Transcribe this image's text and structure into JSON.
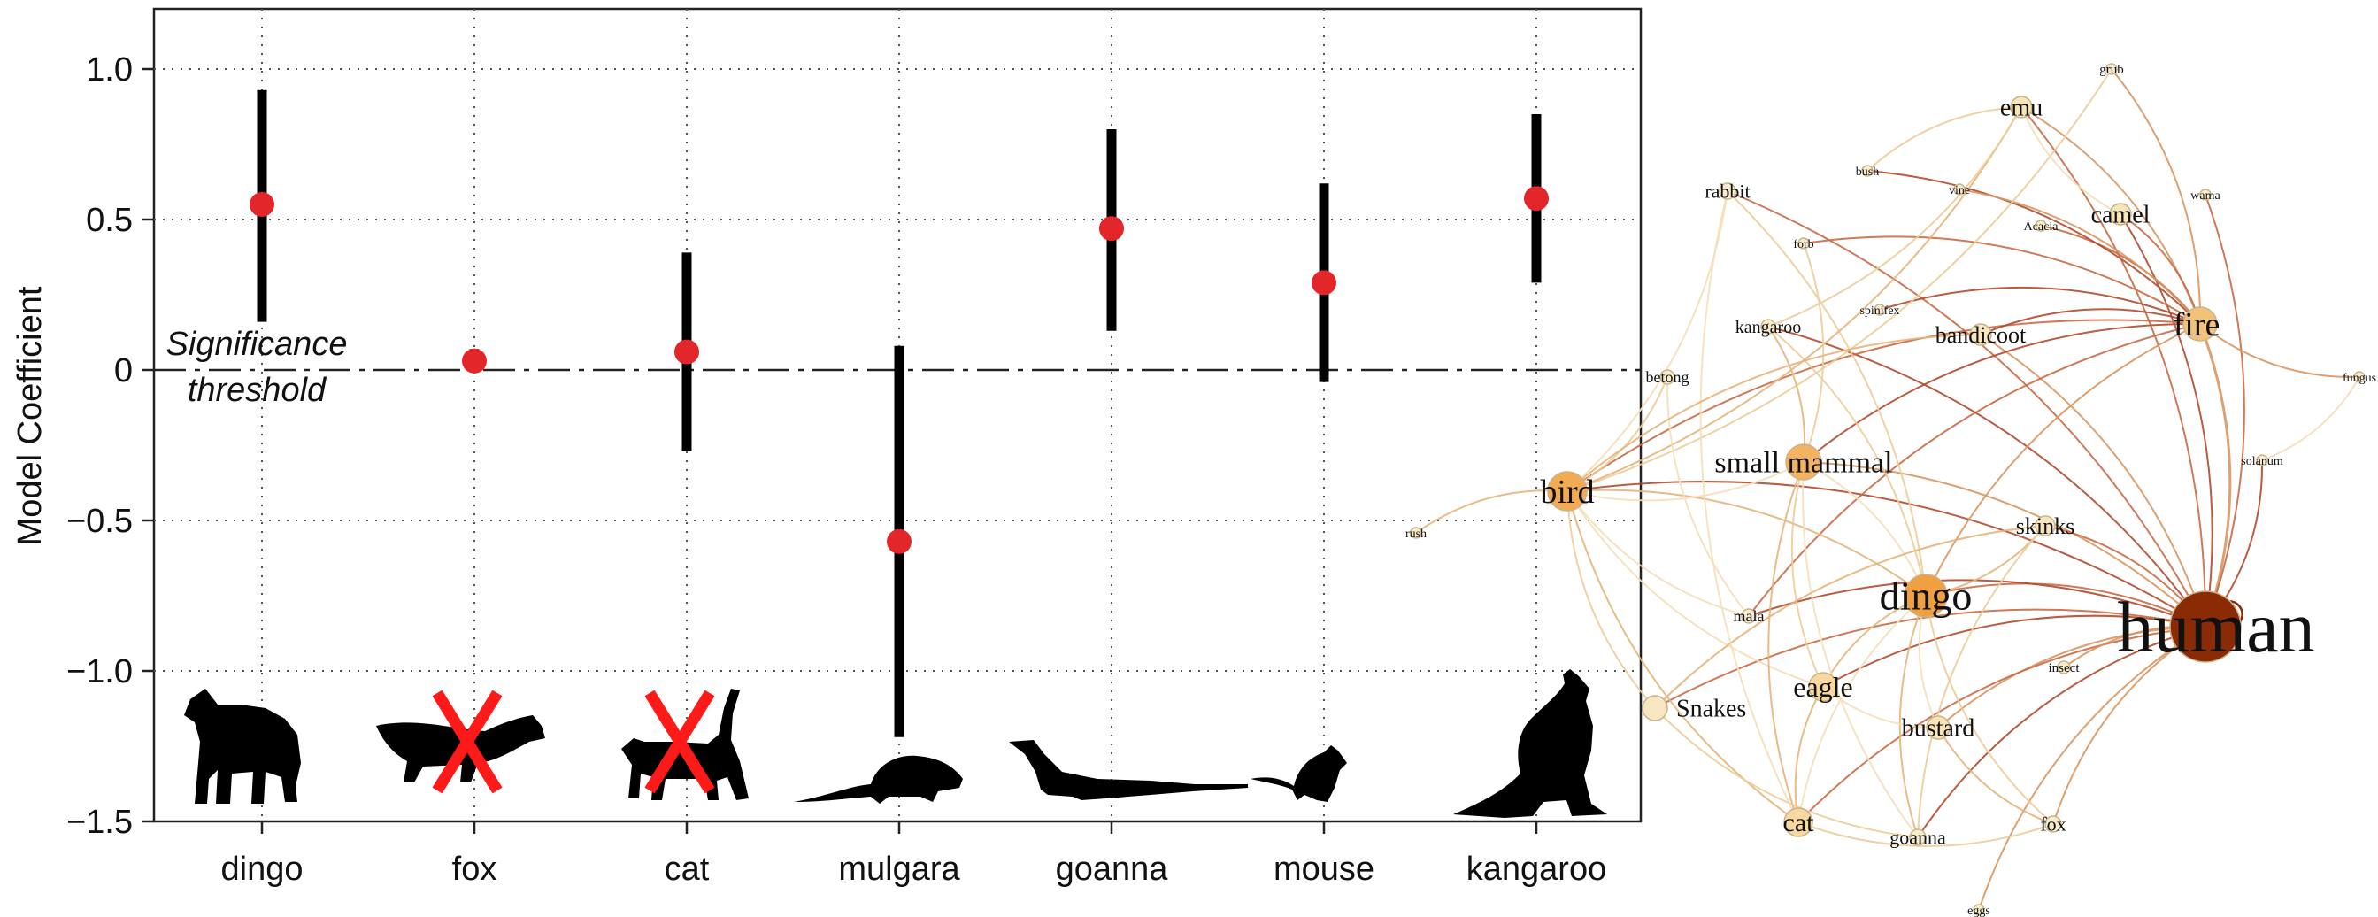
{
  "chart_data": [
    {
      "type": "scatter",
      "title": "",
      "xlabel": "",
      "ylabel": "Model Coefficient",
      "ylim": [
        -1.5,
        1.2
      ],
      "yticks": [
        "1.0",
        "0.5",
        "0",
        "−0.5",
        "−1.0",
        "−1.5"
      ],
      "ytick_values": [
        1.0,
        0.5,
        0.0,
        -0.5,
        -1.0,
        -1.5
      ],
      "grid": "dotted",
      "categories": [
        "dingo",
        "fox",
        "cat",
        "mulgara",
        "goanna",
        "mouse",
        "kangaroo"
      ],
      "points": [
        {
          "category": "dingo",
          "estimate": 0.55,
          "lower": 0.16,
          "upper": 0.93
        },
        {
          "category": "fox",
          "estimate": 0.03,
          "lower": 0.0,
          "upper": 0.07
        },
        {
          "category": "cat",
          "estimate": 0.06,
          "lower": -0.27,
          "upper": 0.39
        },
        {
          "category": "mulgara",
          "estimate": -0.57,
          "lower": -1.22,
          "upper": 0.08
        },
        {
          "category": "goanna",
          "estimate": 0.47,
          "lower": 0.13,
          "upper": 0.8
        },
        {
          "category": "mouse",
          "estimate": 0.29,
          "lower": -0.04,
          "upper": 0.62
        },
        {
          "category": "kangaroo",
          "estimate": 0.57,
          "lower": 0.29,
          "upper": 0.85
        }
      ],
      "threshold": {
        "value": 0.0,
        "label_line1": "Significance",
        "label_line2": "threshold"
      },
      "crossed_out": [
        "fox",
        "cat"
      ],
      "silhouette_icons": [
        "dingo-silhouette-icon",
        "fox-silhouette-icon",
        "cat-silhouette-icon",
        "mulgara-silhouette-icon",
        "goanna-silhouette-icon",
        "mouse-silhouette-icon",
        "kangaroo-silhouette-icon"
      ],
      "colors": {
        "point": "#e3262a",
        "errorbar": "#000000",
        "cross": "#ff1a1a"
      }
    },
    {
      "type": "network",
      "nodes": [
        {
          "label": "human",
          "weight": 10,
          "color": "#8b2b06"
        },
        {
          "label": "fire",
          "weight": 3,
          "color": "#f2c27a"
        },
        {
          "label": "dingo",
          "weight": 4,
          "color": "#f0a040"
        },
        {
          "label": "bird",
          "weight": 3,
          "color": "#f2aa55"
        },
        {
          "label": "small mammal",
          "weight": 3,
          "color": "#f3b363"
        },
        {
          "label": "emu",
          "weight": 2,
          "color": "#f7e4b8"
        },
        {
          "label": "camel",
          "weight": 2,
          "color": "#f7e4b8"
        },
        {
          "label": "bandicoot",
          "weight": 2,
          "color": "#f7e6c0"
        },
        {
          "label": "skinks",
          "weight": 2,
          "color": "#f7e6c0"
        },
        {
          "label": "eagle",
          "weight": 2,
          "color": "#f6d8a0"
        },
        {
          "label": "bustard",
          "weight": 2,
          "color": "#f7e4b8"
        },
        {
          "label": "cat",
          "weight": 2,
          "color": "#f6d8a0"
        },
        {
          "label": "Snakes",
          "weight": 2,
          "color": "#f7e6c0"
        },
        {
          "label": "goanna",
          "weight": 1,
          "color": "#f8eccf"
        },
        {
          "label": "fox",
          "weight": 1,
          "color": "#f8eccf"
        },
        {
          "label": "rabbit",
          "weight": 1,
          "color": "#f8eccf"
        },
        {
          "label": "kangaroo",
          "weight": 1,
          "color": "#f8eccf"
        },
        {
          "label": "betong",
          "weight": 1,
          "color": "#f8eccf"
        },
        {
          "label": "mala",
          "weight": 1,
          "color": "#f8eccf"
        },
        {
          "label": "insect",
          "weight": 1,
          "color": "#f8eccf"
        },
        {
          "label": "grub",
          "weight": 1,
          "color": "#f8eccf"
        },
        {
          "label": "bush",
          "weight": 1,
          "color": "#f8eccf"
        },
        {
          "label": "vine",
          "weight": 1,
          "color": "#f8eccf"
        },
        {
          "label": "Acacia",
          "weight": 1,
          "color": "#f8eccf"
        },
        {
          "label": "forb",
          "weight": 1,
          "color": "#f8eccf"
        },
        {
          "label": "spinifex",
          "weight": 1,
          "color": "#f8eccf"
        },
        {
          "label": "wama",
          "weight": 1,
          "color": "#f8eccf"
        },
        {
          "label": "fungus",
          "weight": 1,
          "color": "#f8eccf"
        },
        {
          "label": "solanum",
          "weight": 1,
          "color": "#f8eccf"
        },
        {
          "label": "rush",
          "weight": 1,
          "color": "#f8eccf"
        },
        {
          "label": "eggs",
          "weight": 1,
          "color": "#f8eccf"
        }
      ]
    }
  ]
}
